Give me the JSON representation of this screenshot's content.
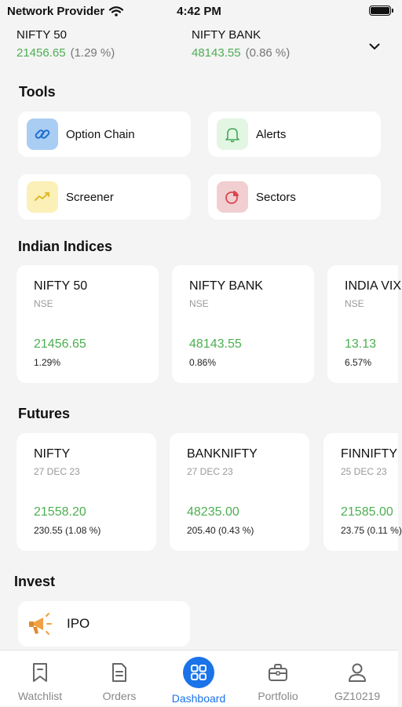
{
  "status_bar": {
    "carrier": "Network Provider",
    "time": "4:42 PM"
  },
  "tickers": [
    {
      "name": "NIFTY 50",
      "price": "21456.65",
      "pct": "(1.29 %)"
    },
    {
      "name": "NIFTY BANK",
      "price": "48143.55",
      "pct": "(0.86 %)"
    }
  ],
  "tools": {
    "title": "Tools",
    "items": [
      {
        "label": "Option Chain",
        "icon": "link-icon"
      },
      {
        "label": "Alerts",
        "icon": "bell-icon"
      },
      {
        "label": "Screener",
        "icon": "trend-icon"
      },
      {
        "label": "Sectors",
        "icon": "pie-chart-icon"
      }
    ]
  },
  "indices": {
    "title": "Indian Indices",
    "items": [
      {
        "name": "NIFTY 50",
        "exchange": "NSE",
        "price": "21456.65",
        "change": "1.29%"
      },
      {
        "name": "NIFTY BANK",
        "exchange": "NSE",
        "price": "48143.55",
        "change": "0.86%"
      },
      {
        "name": "INDIA VIX",
        "exchange": "NSE",
        "price": "13.13",
        "change": "6.57%"
      }
    ]
  },
  "futures": {
    "title": "Futures",
    "items": [
      {
        "name": "NIFTY",
        "expiry": "27 DEC 23",
        "price": "21558.20",
        "change": "230.55 (1.08 %)"
      },
      {
        "name": "BANKNIFTY",
        "expiry": "27 DEC 23",
        "price": "48235.00",
        "change": "205.40 (0.43 %)"
      },
      {
        "name": "FINNIFTY",
        "expiry": "25 DEC 23",
        "price": "21585.00",
        "change": "23.75 (0.11 %)"
      }
    ]
  },
  "invest": {
    "title": "Invest",
    "items": [
      {
        "label": "IPO",
        "icon": "megaphone-icon"
      }
    ]
  },
  "nav": {
    "items": [
      {
        "label": "Watchlist",
        "icon": "bookmark-icon"
      },
      {
        "label": "Orders",
        "icon": "document-icon"
      },
      {
        "label": "Dashboard",
        "icon": "grid-icon",
        "active": true
      },
      {
        "label": "Portfolio",
        "icon": "briefcase-icon"
      },
      {
        "label": "GZ10219",
        "icon": "user-icon"
      }
    ]
  },
  "colors": {
    "positive": "#4caf50",
    "accent": "#1a73e8",
    "background": "#f4f4f5"
  }
}
